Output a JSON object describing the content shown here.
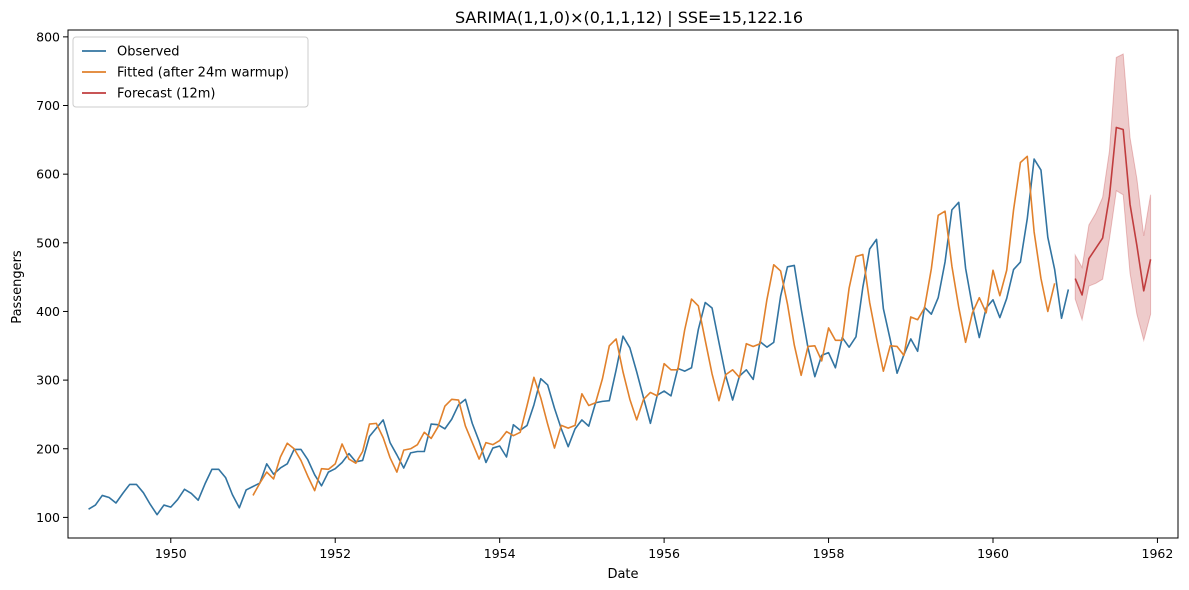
{
  "chart_data": {
    "type": "line",
    "title": "SARIMA(1,1,0)×(0,1,1,12) | SSE=15,122.16",
    "xlabel": "Date",
    "ylabel": "Passengers",
    "xlim": [
      1948.75,
      1962.25
    ],
    "ylim": [
      70,
      810
    ],
    "x_ticks": [
      1950,
      1952,
      1954,
      1956,
      1958,
      1960,
      1962
    ],
    "y_ticks": [
      100,
      200,
      300,
      400,
      500,
      600,
      700,
      800
    ],
    "grid": false,
    "legend_position": "top-left",
    "x_start": "1949-01",
    "series": [
      {
        "name": "Observed",
        "color": "#3274a1",
        "start": "1949-01",
        "values": [
          112,
          118,
          132,
          129,
          121,
          135,
          148,
          148,
          136,
          119,
          104,
          118,
          115,
          126,
          141,
          135,
          125,
          149,
          170,
          170,
          158,
          133,
          114,
          140,
          145,
          150,
          178,
          163,
          172,
          178,
          199,
          199,
          184,
          162,
          146,
          166,
          171,
          180,
          193,
          181,
          183,
          218,
          230,
          242,
          209,
          191,
          172,
          194,
          196,
          196,
          236,
          235,
          229,
          243,
          264,
          272,
          237,
          211,
          180,
          201,
          204,
          188,
          235,
          227,
          234,
          264,
          302,
          293,
          259,
          229,
          203,
          229,
          242,
          233,
          267,
          269,
          270,
          315,
          364,
          347,
          312,
          274,
          237,
          278,
          284,
          277,
          317,
          313,
          318,
          374,
          413,
          405,
          355,
          306,
          271,
          306,
          315,
          301,
          356,
          348,
          355,
          422,
          465,
          467,
          404,
          347,
          305,
          336,
          340,
          318,
          362,
          348,
          363,
          435,
          491,
          505,
          404,
          359,
          310,
          337,
          360,
          342,
          406,
          396,
          420,
          472,
          548,
          559,
          463,
          407,
          362,
          405,
          417,
          391,
          419,
          461,
          472,
          535,
          622,
          606,
          508,
          461,
          390,
          432
        ]
      },
      {
        "name": "Fitted (after 24m warmup)",
        "color": "#e1812c",
        "start": "1951-01",
        "values": [
          132,
          150,
          166,
          156,
          188,
          208,
          200,
          183,
          160,
          139,
          171,
          170,
          178,
          207,
          185,
          179,
          196,
          236,
          237,
          216,
          187,
          166,
          198,
          200,
          206,
          224,
          215,
          232,
          262,
          272,
          271,
          233,
          209,
          185,
          209,
          206,
          212,
          225,
          219,
          224,
          263,
          304,
          274,
          236,
          201,
          234,
          230,
          234,
          280,
          263,
          267,
          302,
          350,
          360,
          312,
          272,
          242,
          272,
          282,
          277,
          324,
          315,
          315,
          373,
          418,
          408,
          358,
          309,
          270,
          308,
          315,
          304,
          353,
          349,
          353,
          417,
          468,
          459,
          411,
          351,
          307,
          349,
          350,
          328,
          376,
          358,
          358,
          434,
          480,
          483,
          413,
          361,
          313,
          350,
          349,
          336,
          392,
          388,
          405,
          462,
          540,
          546,
          466,
          406,
          355,
          398,
          420,
          398,
          460,
          423,
          460,
          548,
          617,
          626,
          516,
          448,
          400,
          441
        ]
      },
      {
        "name": "Forecast (12m)",
        "color": "#c03d3e",
        "start": "1961-01",
        "values": [
          448,
          424,
          477,
          492,
          507,
          568,
          668,
          665,
          556,
          496,
          430,
          476
        ],
        "lower": [
          418,
          388,
          437,
          441,
          447,
          506,
          576,
          570,
          456,
          396,
          358,
          396
        ],
        "upper": [
          482,
          464,
          526,
          543,
          566,
          634,
          770,
          775,
          653,
          593,
          510,
          570
        ]
      }
    ]
  }
}
